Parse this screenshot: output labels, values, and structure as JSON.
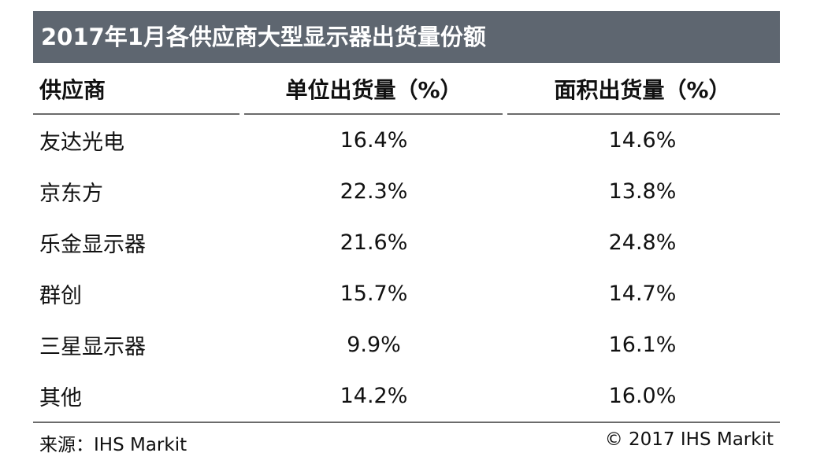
{
  "chart_data": {
    "type": "table",
    "title": "2017年1月各供应商大型显示器出货量份额",
    "columns": [
      "供应商",
      "单位出货量（%）",
      "面积出货量（%）"
    ],
    "rows": [
      {
        "supplier": "友达光电",
        "unit_share": "16.4%",
        "area_share": "14.6%"
      },
      {
        "supplier": "京东方",
        "unit_share": "22.3%",
        "area_share": "13.8%"
      },
      {
        "supplier": "乐金显示器",
        "unit_share": "21.6%",
        "area_share": "24.8%"
      },
      {
        "supplier": "群创",
        "unit_share": "15.7%",
        "area_share": "14.7%"
      },
      {
        "supplier": "三星显示器",
        "unit_share": "9.9%",
        "area_share": "16.1%"
      },
      {
        "supplier": "其他",
        "unit_share": "14.2%",
        "area_share": "16.0%"
      }
    ],
    "unit_values": [
      16.4,
      22.3,
      21.6,
      15.7,
      9.9,
      14.2
    ],
    "area_values": [
      14.6,
      13.8,
      24.8,
      14.7,
      16.1,
      16.0
    ]
  },
  "footer": {
    "source": "来源：IHS Markit",
    "copyright": "© 2017 IHS Markit"
  },
  "colors": {
    "title_bar": "#5e6670",
    "title_text": "#ffffff",
    "rule": "#6b6b6b",
    "text": "#111111"
  }
}
